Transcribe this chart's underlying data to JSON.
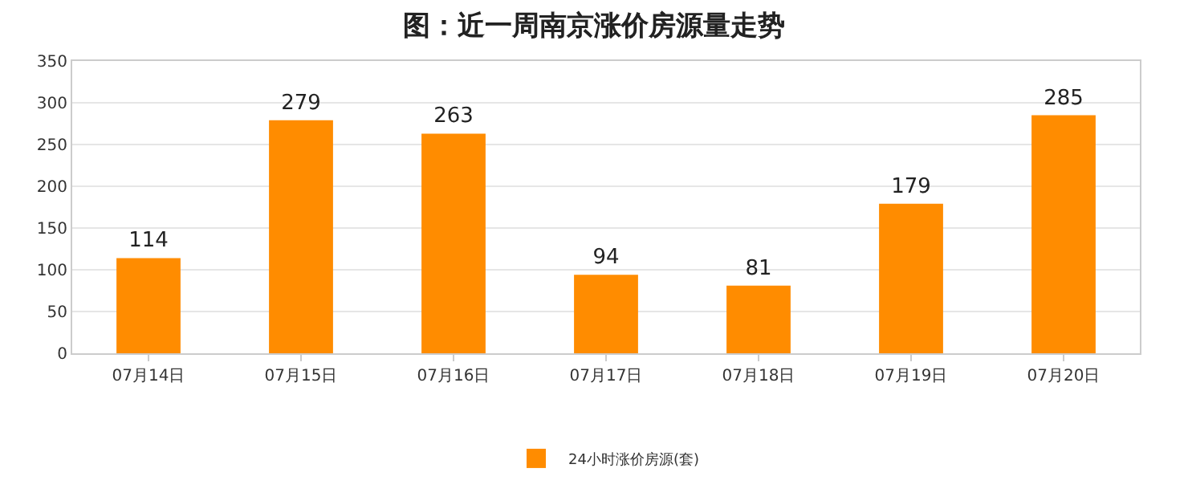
{
  "chart_data": {
    "type": "bar",
    "title": "图：近一周南京涨价房源量走势",
    "categories": [
      "07月14日",
      "07月15日",
      "07月16日",
      "07月17日",
      "07月18日",
      "07月19日",
      "07月20日"
    ],
    "series": [
      {
        "name": "24小时涨价房源(套)",
        "color": "#ff8c00",
        "values": [
          114,
          279,
          263,
          94,
          81,
          179,
          285
        ]
      }
    ],
    "ylim": [
      0,
      350
    ],
    "yticks": [
      0,
      50,
      100,
      150,
      200,
      250,
      300,
      350
    ],
    "grid": "y",
    "legend": "bottom",
    "data_labels": true
  }
}
